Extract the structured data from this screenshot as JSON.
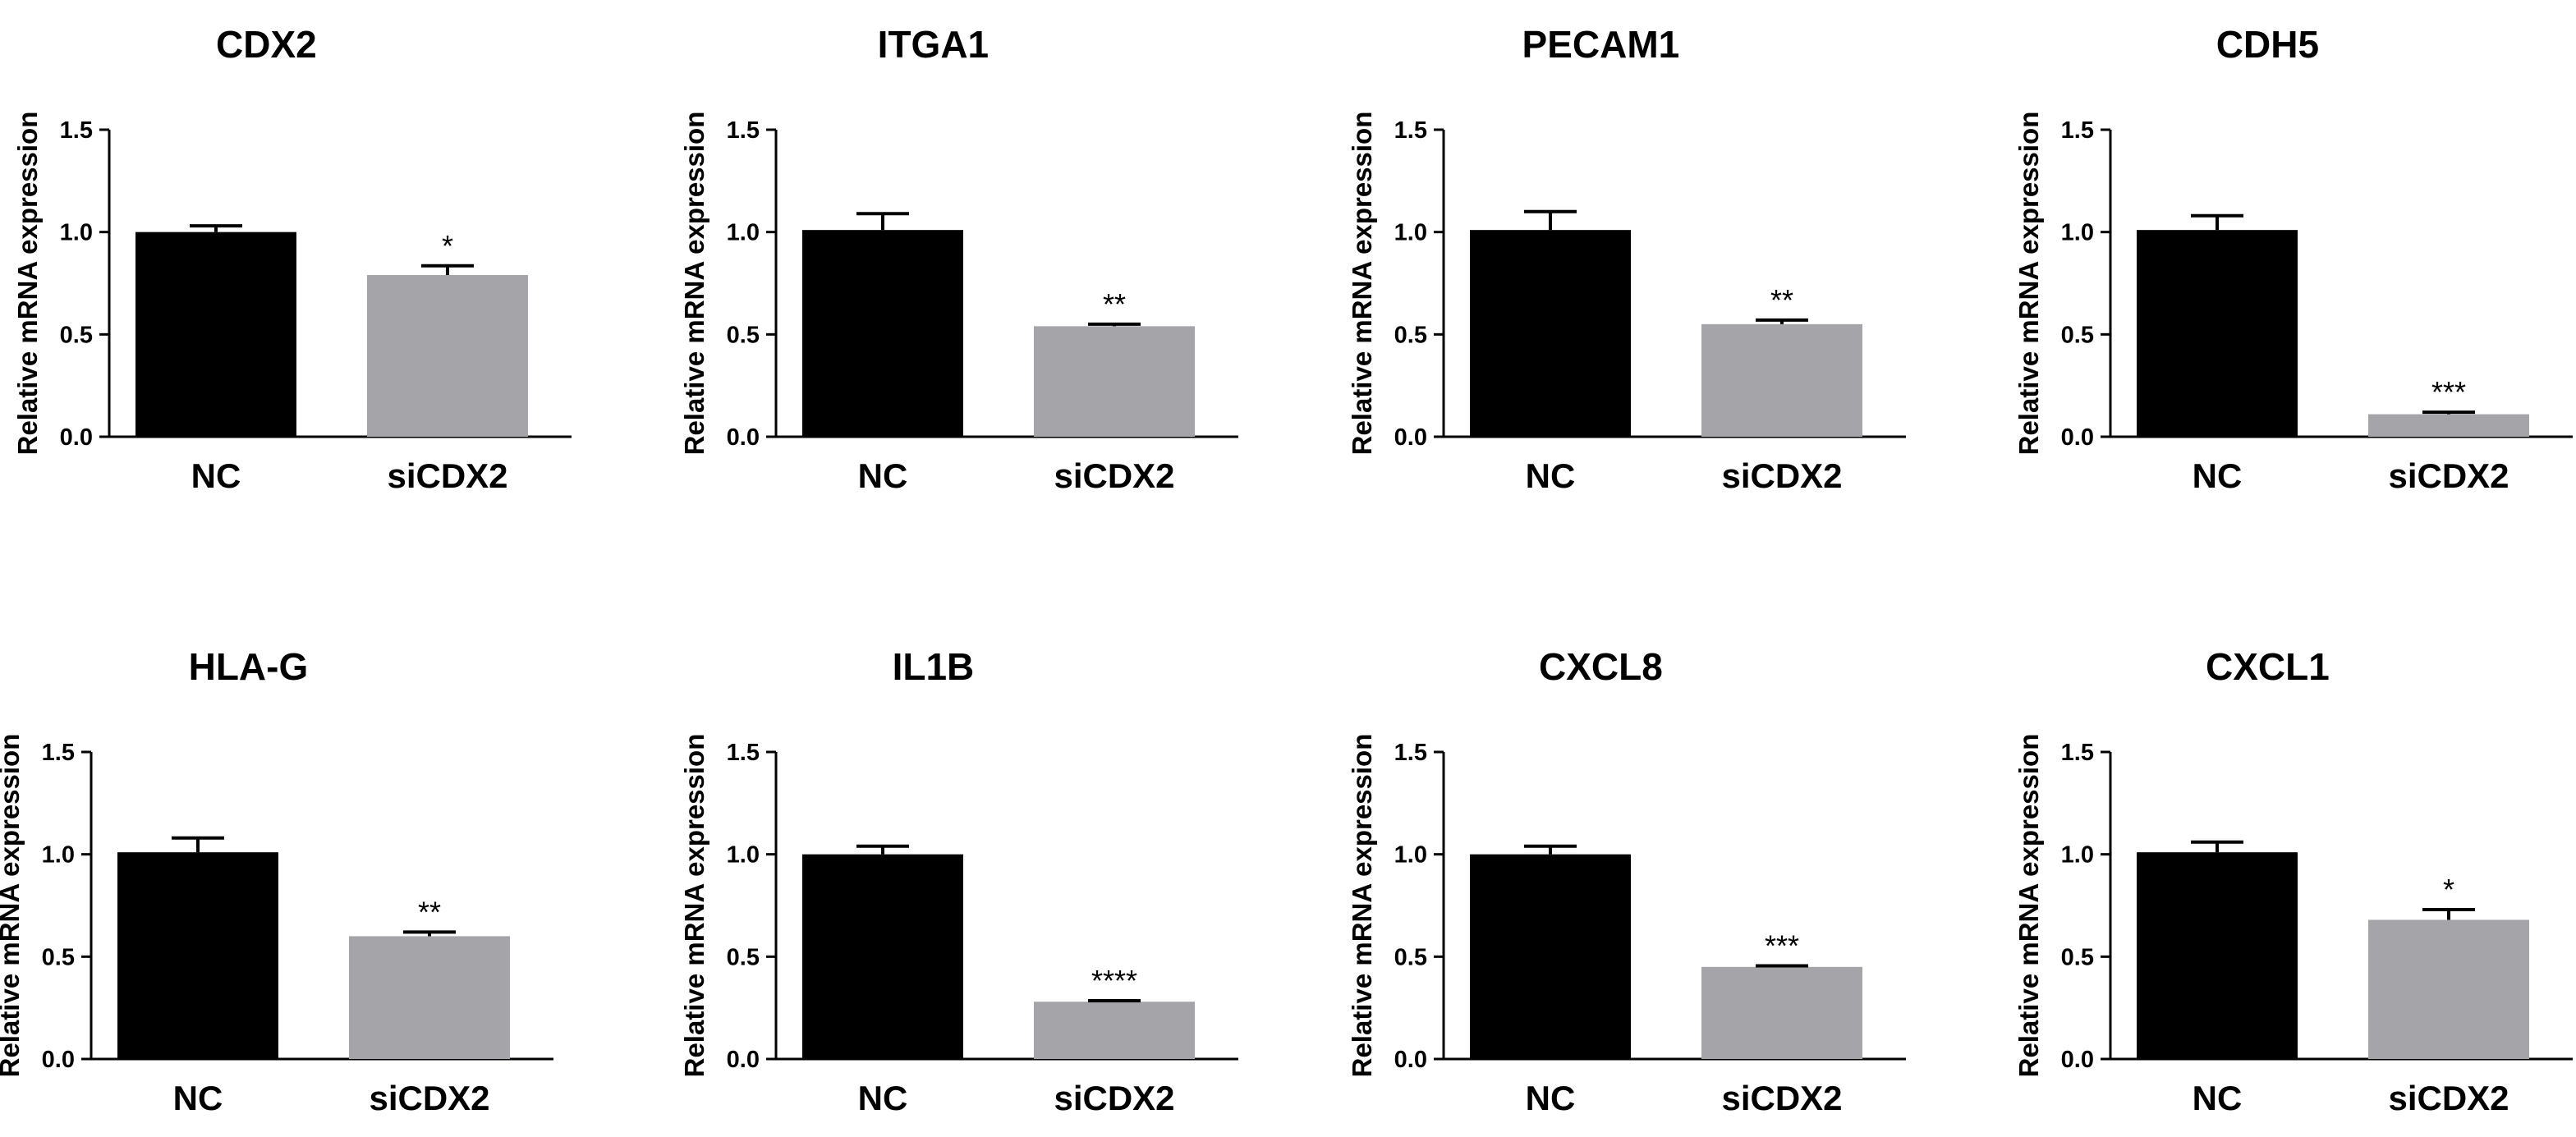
{
  "chart_data": [
    {
      "type": "bar",
      "title": "CDX2",
      "xlabel": "",
      "ylabel": "Relative mRNA expression",
      "categories": [
        "NC",
        "siCDX2"
      ],
      "values": [
        1.0,
        0.79
      ],
      "errors": [
        0.03,
        0.045
      ],
      "significance": [
        "",
        "*"
      ],
      "colors": [
        "#000000",
        "#a5a5a9"
      ],
      "ylim": [
        0,
        1.5
      ],
      "yticks": [
        "0.0",
        "0.5",
        "1.0",
        "1.5"
      ]
    },
    {
      "type": "bar",
      "title": "ITGA1",
      "xlabel": "",
      "ylabel": "Relative mRNA expression",
      "categories": [
        "NC",
        "siCDX2"
      ],
      "values": [
        1.01,
        0.54
      ],
      "errors": [
        0.08,
        0.01
      ],
      "significance": [
        "",
        "**"
      ],
      "colors": [
        "#000000",
        "#a5a5a9"
      ],
      "ylim": [
        0,
        1.5
      ],
      "yticks": [
        "0.0",
        "0.5",
        "1.0",
        "1.5"
      ]
    },
    {
      "type": "bar",
      "title": "PECAM1",
      "xlabel": "",
      "ylabel": "Relative mRNA expression",
      "categories": [
        "NC",
        "siCDX2"
      ],
      "values": [
        1.01,
        0.55
      ],
      "errors": [
        0.09,
        0.02
      ],
      "significance": [
        "",
        "**"
      ],
      "colors": [
        "#000000",
        "#a5a5a9"
      ],
      "ylim": [
        0,
        1.5
      ],
      "yticks": [
        "0.0",
        "0.5",
        "1.0",
        "1.5"
      ]
    },
    {
      "type": "bar",
      "title": "CDH5",
      "xlabel": "",
      "ylabel": "Relative mRNA expression",
      "categories": [
        "NC",
        "siCDX2"
      ],
      "values": [
        1.01,
        0.11
      ],
      "errors": [
        0.07,
        0.01
      ],
      "significance": [
        "",
        "***"
      ],
      "colors": [
        "#000000",
        "#a5a5a9"
      ],
      "ylim": [
        0,
        1.5
      ],
      "yticks": [
        "0.0",
        "0.5",
        "1.0",
        "1.5"
      ]
    },
    {
      "type": "bar",
      "title": "HLA-G",
      "xlabel": "",
      "ylabel": "Relative mRNA expression",
      "categories": [
        "NC",
        "siCDX2"
      ],
      "values": [
        1.01,
        0.6
      ],
      "errors": [
        0.07,
        0.02
      ],
      "significance": [
        "",
        "**"
      ],
      "colors": [
        "#000000",
        "#a5a5a9"
      ],
      "ylim": [
        0,
        1.5
      ],
      "yticks": [
        "0.0",
        "0.5",
        "1.0",
        "1.5"
      ]
    },
    {
      "type": "bar",
      "title": "IL1B",
      "xlabel": "",
      "ylabel": "Relative mRNA expression",
      "categories": [
        "NC",
        "siCDX2"
      ],
      "values": [
        1.0,
        0.28
      ],
      "errors": [
        0.04,
        0.005
      ],
      "significance": [
        "",
        "****"
      ],
      "colors": [
        "#000000",
        "#a5a5a9"
      ],
      "ylim": [
        0,
        1.5
      ],
      "yticks": [
        "0.0",
        "0.5",
        "1.0",
        "1.5"
      ]
    },
    {
      "type": "bar",
      "title": "CXCL8",
      "xlabel": "",
      "ylabel": "Relative mRNA expression",
      "categories": [
        "NC",
        "siCDX2"
      ],
      "values": [
        1.0,
        0.45
      ],
      "errors": [
        0.04,
        0.005
      ],
      "significance": [
        "",
        "***"
      ],
      "colors": [
        "#000000",
        "#a5a5a9"
      ],
      "ylim": [
        0,
        1.5
      ],
      "yticks": [
        "0.0",
        "0.5",
        "1.0",
        "1.5"
      ]
    },
    {
      "type": "bar",
      "title": "CXCL1",
      "xlabel": "",
      "ylabel": "Relative mRNA expression",
      "categories": [
        "NC",
        "siCDX2"
      ],
      "values": [
        1.01,
        0.68
      ],
      "errors": [
        0.05,
        0.05
      ],
      "significance": [
        "",
        "*"
      ],
      "colors": [
        "#000000",
        "#a5a5a9"
      ],
      "ylim": [
        0,
        1.5
      ],
      "yticks": [
        "0.0",
        "0.5",
        "1.0",
        "1.5"
      ]
    }
  ]
}
